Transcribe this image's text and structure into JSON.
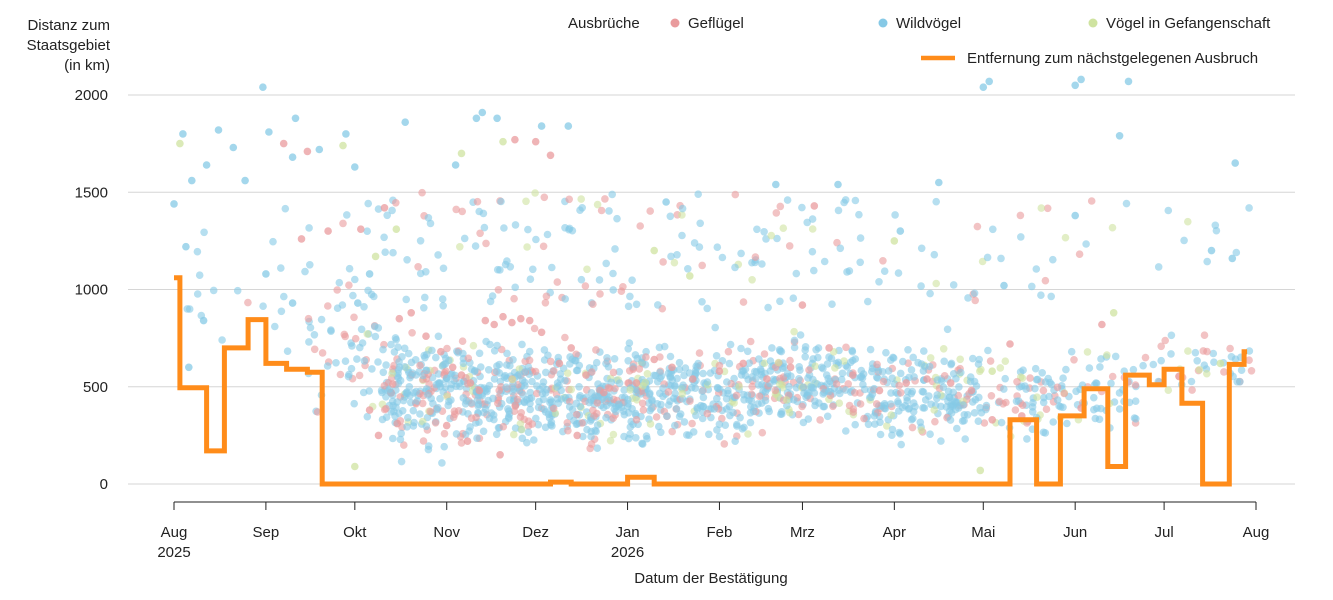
{
  "chart_data": {
    "type": "scatter",
    "ylabel_lines": [
      "Distanz zum",
      "Staatsgebiet",
      "(in km)"
    ],
    "xlabel": "Datum der Bestätigung",
    "ylim": [
      0,
      2000
    ],
    "yticks": [
      0,
      500,
      1000,
      1500,
      2000
    ],
    "xlim": [
      "2025-08-01",
      "2026-08-01"
    ],
    "xticks": [
      {
        "date": "2025-08-01",
        "label": "Aug",
        "year": "2025"
      },
      {
        "date": "2025-09-01",
        "label": "Sep",
        "year": ""
      },
      {
        "date": "2025-10-01",
        "label": "Okt",
        "year": ""
      },
      {
        "date": "2025-11-01",
        "label": "Nov",
        "year": ""
      },
      {
        "date": "2025-12-01",
        "label": "Dez",
        "year": ""
      },
      {
        "date": "2026-01-01",
        "label": "Jan",
        "year": "2026"
      },
      {
        "date": "2026-02-01",
        "label": "Feb",
        "year": ""
      },
      {
        "date": "2026-03-01",
        "label": "Mrz",
        "year": ""
      },
      {
        "date": "2026-04-01",
        "label": "Apr",
        "year": ""
      },
      {
        "date": "2026-05-01",
        "label": "Mai",
        "year": ""
      },
      {
        "date": "2026-06-01",
        "label": "Jun",
        "year": ""
      },
      {
        "date": "2026-07-01",
        "label": "Jul",
        "year": ""
      },
      {
        "date": "2026-08-01",
        "label": "Aug",
        "year": ""
      }
    ],
    "grid": true,
    "legend": {
      "title": "Ausbrüche",
      "position": "top",
      "items": [
        {
          "label": "Geflügel",
          "color": "#e99b9d",
          "kind": "point"
        },
        {
          "label": "Wildvögel",
          "color": "#86c9e6",
          "kind": "point"
        },
        {
          "label": "Vögel in Gefangenschaft",
          "color": "#cfe3a0",
          "kind": "point"
        },
        {
          "label": "Entfernung zum nächstgelegenen Ausbruch",
          "color": "#ff8c1a",
          "kind": "line"
        }
      ]
    },
    "series": [
      {
        "name": "Geflügel",
        "color": "#e99b9d",
        "points": [
          [
            "2025-09-22",
            1300
          ],
          [
            "2025-09-07",
            1750
          ],
          [
            "2025-09-15",
            1710
          ],
          [
            "2025-09-13",
            1260
          ],
          [
            "2025-10-03",
            1310
          ],
          [
            "2025-10-11",
            1420
          ],
          [
            "2025-10-16",
            850
          ],
          [
            "2025-10-20",
            880
          ],
          [
            "2025-10-25",
            760
          ],
          [
            "2025-10-30",
            680
          ],
          [
            "2025-11-03",
            600
          ],
          [
            "2025-11-06",
            560
          ],
          [
            "2025-11-09",
            520
          ],
          [
            "2025-11-12",
            480
          ],
          [
            "2025-11-14",
            840
          ],
          [
            "2025-11-17",
            820
          ],
          [
            "2025-11-20",
            860
          ],
          [
            "2025-11-23",
            830
          ],
          [
            "2025-11-26",
            850
          ],
          [
            "2025-11-29",
            840
          ],
          [
            "2025-12-03",
            780
          ],
          [
            "2025-12-06",
            1690
          ],
          [
            "2025-12-01",
            1760
          ],
          [
            "2025-11-24",
            1770
          ],
          [
            "2025-12-09",
            620
          ],
          [
            "2025-12-13",
            700
          ],
          [
            "2025-12-18",
            560
          ],
          [
            "2025-12-24",
            470
          ],
          [
            "2026-01-04",
            520
          ],
          [
            "2026-01-10",
            640
          ],
          [
            "2026-01-16",
            600
          ],
          [
            "2026-01-23",
            540
          ],
          [
            "2026-02-01",
            580
          ],
          [
            "2026-02-09",
            620
          ],
          [
            "2026-02-17",
            540
          ],
          [
            "2026-02-25",
            600
          ],
          [
            "2026-03-01",
            920
          ],
          [
            "2026-03-05",
            1430
          ],
          [
            "2026-03-10",
            700
          ],
          [
            "2026-03-18",
            560
          ],
          [
            "2026-03-27",
            480
          ],
          [
            "2026-04-05",
            520
          ],
          [
            "2026-04-12",
            540
          ],
          [
            "2026-04-20",
            520
          ],
          [
            "2026-04-27",
            480
          ],
          [
            "2026-05-04",
            330
          ],
          [
            "2026-05-10",
            720
          ],
          [
            "2026-05-14",
            350
          ],
          [
            "2026-06-10",
            820
          ],
          [
            "2026-06-03",
            390
          ],
          [
            "2025-10-06",
            380
          ],
          [
            "2025-10-09",
            250
          ],
          [
            "2025-11-01",
            300
          ],
          [
            "2025-11-08",
            220
          ],
          [
            "2025-11-19",
            150
          ],
          [
            "2025-12-15",
            250
          ]
        ]
      },
      {
        "name": "Wildvögel",
        "color": "#86c9e6",
        "points": [
          [
            "2025-08-01",
            1440
          ],
          [
            "2025-08-04",
            1800
          ],
          [
            "2025-08-05",
            1220
          ],
          [
            "2025-08-07",
            1560
          ],
          [
            "2025-08-12",
            1640
          ],
          [
            "2025-08-16",
            1820
          ],
          [
            "2025-08-21",
            1730
          ],
          [
            "2025-08-25",
            1560
          ],
          [
            "2025-08-31",
            2040
          ],
          [
            "2025-09-02",
            1810
          ],
          [
            "2025-09-10",
            1680
          ],
          [
            "2025-09-11",
            1880
          ],
          [
            "2025-09-19",
            1720
          ],
          [
            "2025-09-28",
            1800
          ],
          [
            "2025-10-01",
            1630
          ],
          [
            "2025-10-18",
            1860
          ],
          [
            "2025-11-04",
            1640
          ],
          [
            "2025-11-11",
            1880
          ],
          [
            "2025-11-13",
            1910
          ],
          [
            "2025-11-18",
            1880
          ],
          [
            "2025-12-03",
            1840
          ],
          [
            "2025-12-12",
            1840
          ],
          [
            "2026-01-14",
            1450
          ],
          [
            "2026-02-20",
            1540
          ],
          [
            "2026-03-13",
            1540
          ],
          [
            "2026-04-16",
            1550
          ],
          [
            "2026-05-01",
            2040
          ],
          [
            "2026-05-03",
            2070
          ],
          [
            "2026-06-01",
            2050
          ],
          [
            "2026-06-03",
            2080
          ],
          [
            "2026-06-19",
            2070
          ],
          [
            "2026-06-16",
            1790
          ],
          [
            "2026-07-25",
            1650
          ],
          [
            "2026-07-24",
            1160
          ],
          [
            "2026-07-17",
            1200
          ],
          [
            "2026-06-01",
            1380
          ],
          [
            "2026-05-08",
            1020
          ],
          [
            "2026-04-03",
            1300
          ],
          [
            "2025-08-06",
            600
          ],
          [
            "2025-08-11",
            840
          ],
          [
            "2025-09-01",
            1080
          ],
          [
            "2025-09-10",
            930
          ],
          [
            "2025-10-06",
            1080
          ],
          [
            "2025-10-02",
            930
          ]
        ]
      },
      {
        "name": "Vögel in Gefangenschaft",
        "color": "#cfe3a0",
        "points": [
          [
            "2025-08-03",
            1750
          ],
          [
            "2025-09-27",
            1740
          ],
          [
            "2025-10-08",
            1170
          ],
          [
            "2025-10-15",
            1310
          ],
          [
            "2025-11-06",
            1700
          ],
          [
            "2025-11-20",
            1760
          ],
          [
            "2026-01-10",
            1200
          ],
          [
            "2026-01-22",
            1070
          ],
          [
            "2026-04-01",
            1250
          ],
          [
            "2026-05-04",
            580
          ],
          [
            "2026-06-14",
            880
          ],
          [
            "2026-07-20",
            620
          ],
          [
            "2025-10-01",
            90
          ],
          [
            "2026-04-30",
            70
          ]
        ]
      }
    ],
    "line_series": {
      "name": "Entfernung zum nächstgelegenen Ausbruch",
      "color": "#ff8c1a",
      "shape": "step-after",
      "points": [
        [
          "2025-08-01",
          1060
        ],
        [
          "2025-08-03",
          1060
        ],
        [
          "2025-08-03",
          495
        ],
        [
          "2025-08-12",
          495
        ],
        [
          "2025-08-12",
          170
        ],
        [
          "2025-08-18",
          170
        ],
        [
          "2025-08-18",
          700
        ],
        [
          "2025-08-26",
          700
        ],
        [
          "2025-08-26",
          845
        ],
        [
          "2025-09-01",
          845
        ],
        [
          "2025-09-01",
          620
        ],
        [
          "2025-09-08",
          620
        ],
        [
          "2025-09-08",
          590
        ],
        [
          "2025-09-15",
          590
        ],
        [
          "2025-09-15",
          575
        ],
        [
          "2025-09-20",
          575
        ],
        [
          "2025-09-20",
          0
        ],
        [
          "2025-12-06",
          0
        ],
        [
          "2025-12-06",
          10
        ],
        [
          "2025-12-13",
          10
        ],
        [
          "2025-12-13",
          0
        ],
        [
          "2026-01-01",
          0
        ],
        [
          "2026-01-01",
          35
        ],
        [
          "2026-01-10",
          35
        ],
        [
          "2026-01-10",
          0
        ],
        [
          "2026-05-10",
          0
        ],
        [
          "2026-05-10",
          330
        ],
        [
          "2026-05-19",
          330
        ],
        [
          "2026-05-19",
          0
        ],
        [
          "2026-05-27",
          0
        ],
        [
          "2026-05-27",
          350
        ],
        [
          "2026-06-04",
          350
        ],
        [
          "2026-06-04",
          490
        ],
        [
          "2026-06-12",
          490
        ],
        [
          "2026-06-12",
          90
        ],
        [
          "2026-06-18",
          90
        ],
        [
          "2026-06-18",
          560
        ],
        [
          "2026-06-26",
          560
        ],
        [
          "2026-06-26",
          510
        ],
        [
          "2026-07-01",
          510
        ],
        [
          "2026-07-01",
          590
        ],
        [
          "2026-07-07",
          590
        ],
        [
          "2026-07-07",
          415
        ],
        [
          "2026-07-14",
          415
        ],
        [
          "2026-07-14",
          0
        ],
        [
          "2026-07-23",
          0
        ],
        [
          "2026-07-23",
          615
        ],
        [
          "2026-07-28",
          615
        ],
        [
          "2026-07-28",
          680
        ],
        [
          "2026-07-29",
          680
        ]
      ]
    }
  }
}
